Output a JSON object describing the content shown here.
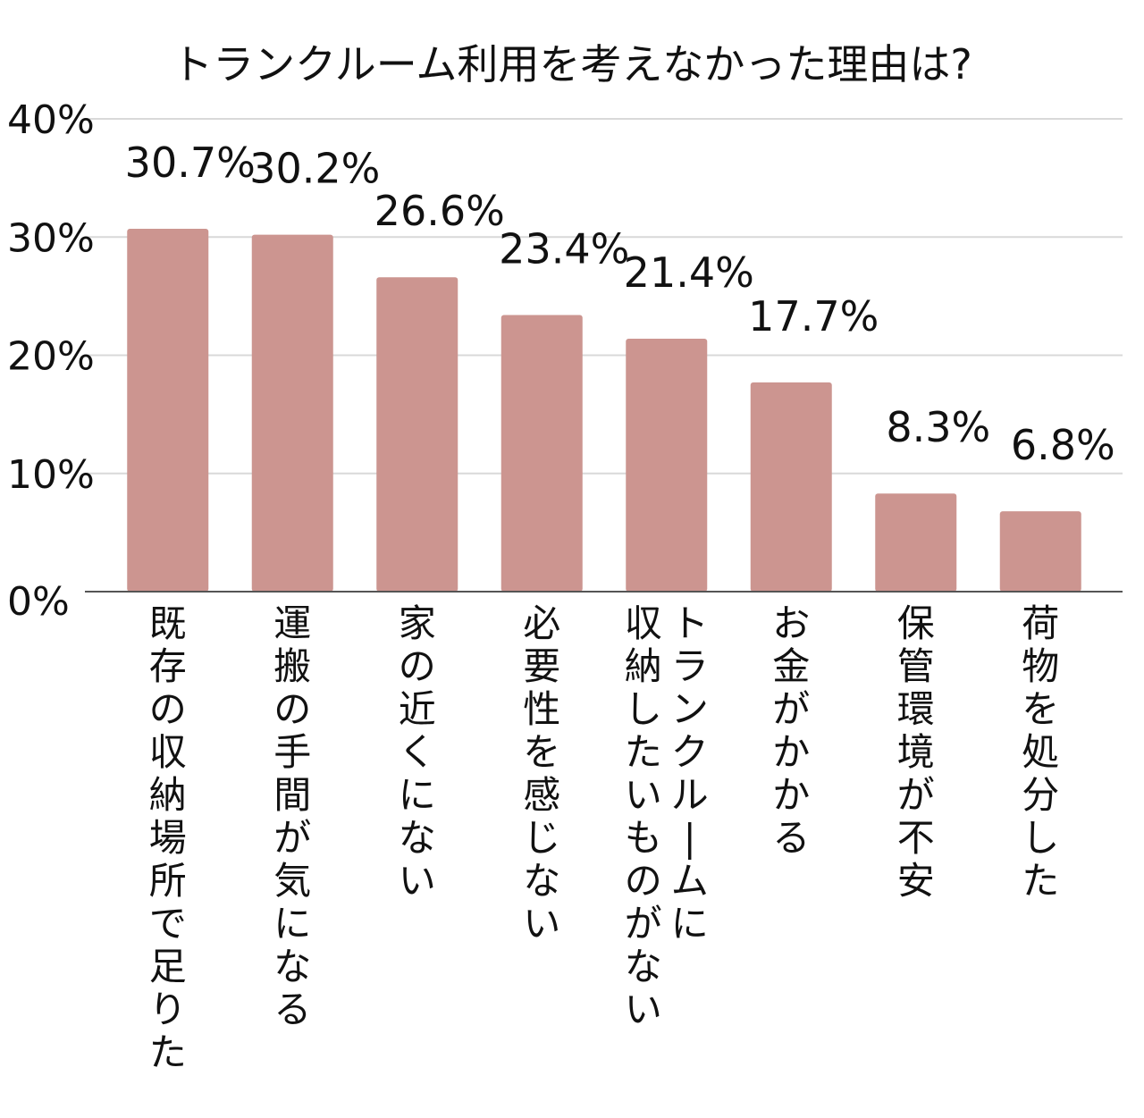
{
  "chart_data": {
    "type": "bar",
    "title": "トランクルーム利用を考えなかった理由は?",
    "categories": [
      "既存の収納場所で足りた",
      "運搬の手間が気になる",
      "家の近くにない",
      "必要性を感じない",
      "トランクルームに収納したいものがない",
      "お金がかかる",
      "保管環境が不安",
      "荷物を処分した"
    ],
    "category_lines": [
      [
        "既存の収納場所で足りた"
      ],
      [
        "運搬の手間が気になる"
      ],
      [
        "家の近くにない"
      ],
      [
        "必要性を感じない"
      ],
      [
        "トランクルームに",
        "収納したいものがない"
      ],
      [
        "お金がかかる"
      ],
      [
        "保管環境が不安"
      ],
      [
        "荷物を処分した"
      ]
    ],
    "values": [
      30.7,
      30.2,
      26.6,
      23.4,
      21.4,
      17.7,
      8.3,
      6.8
    ],
    "value_labels": [
      "30.7%",
      "30.2%",
      "26.6%",
      "23.4%",
      "21.4%",
      "17.7%",
      "8.3%",
      "6.8%"
    ],
    "yticks": [
      0,
      10,
      20,
      30,
      40
    ],
    "ytick_labels": [
      "0%",
      "10%",
      "20%",
      "30%",
      "40%"
    ],
    "ylim": [
      0,
      40
    ],
    "xlabel": "",
    "ylabel": "",
    "grid": true,
    "legend": "none",
    "bar_color": "#cc9590",
    "grid_color": "#d9d9d9",
    "axis_color": "#555555"
  }
}
